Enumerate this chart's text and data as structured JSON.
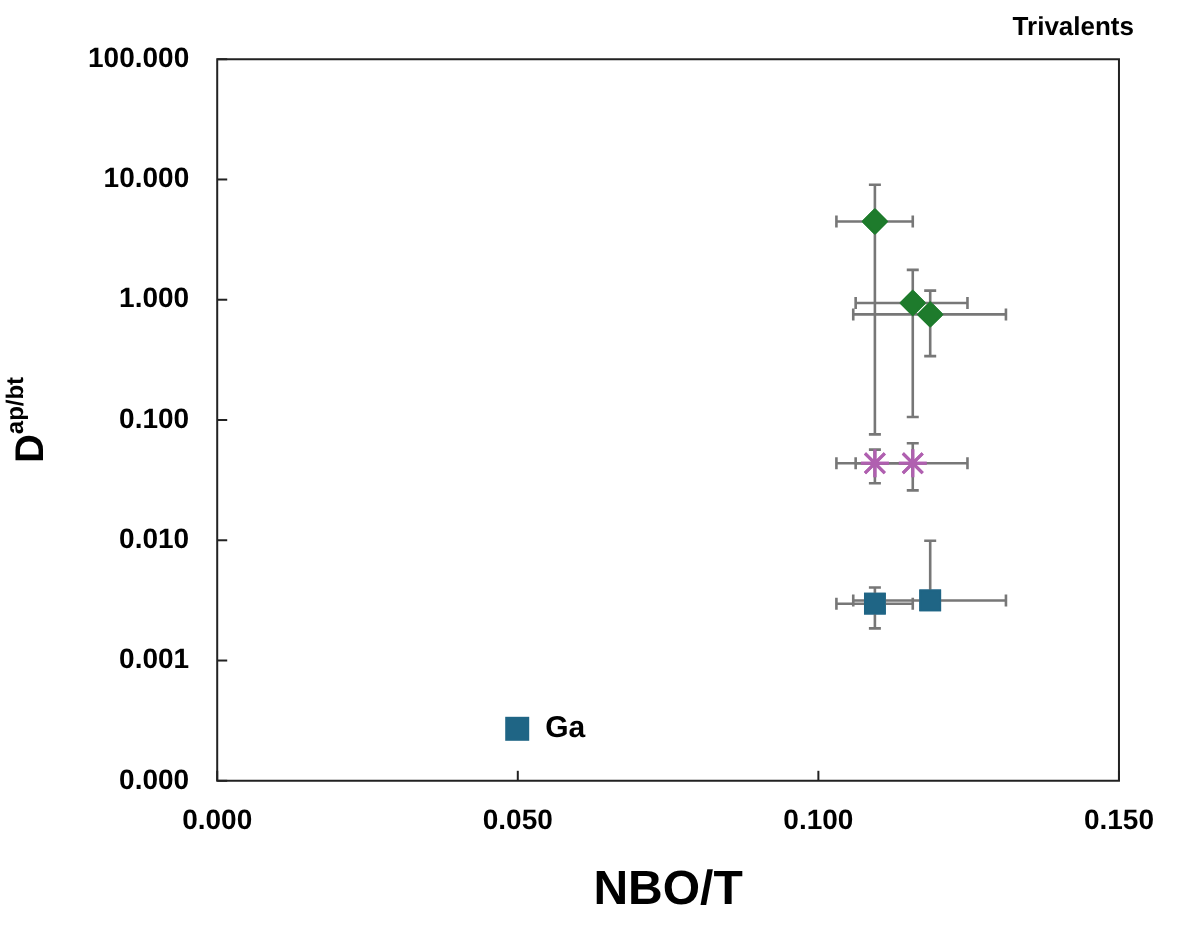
{
  "chart_data": {
    "type": "scatter",
    "title": "Trivalents",
    "xlabel": "NBO/T",
    "ylabel": "D$^{ap/bt}$",
    "log": "y",
    "xlim": [
      0,
      0.15
    ],
    "xticks": [
      {
        "value": 0,
        "label": "0.000"
      },
      {
        "value": 0.05,
        "label": "0.050"
      },
      {
        "value": 0.1,
        "label": "0.100"
      },
      {
        "value": 0.15,
        "label": "0.150"
      }
    ],
    "ylim": [
      0.0001,
      100
    ],
    "yticks": [
      {
        "value": 0.0001,
        "label": "0.000"
      },
      {
        "value": 0.001,
        "label": "0.001"
      },
      {
        "value": 0.01,
        "label": "0.010"
      },
      {
        "value": 0.1,
        "label": "0.100"
      },
      {
        "value": 1,
        "label": "1.000"
      },
      {
        "value": 10,
        "label": "10.000"
      },
      {
        "value": 100,
        "label": "100.000"
      }
    ],
    "grid": false,
    "legend": "bottom left",
    "series": [
      {
        "color": "#1e7b2c",
        "marker": "diamond",
        "x": [
          0.1094,
          0.1157,
          0.1186
        ],
        "values": [
          4.47,
          0.94,
          0.755
        ],
        "errors": [
          [
            0.076,
            9.05
          ],
          [
            0.106,
            1.77
          ],
          [
            0.34,
            1.19
          ]
        ],
        "xerrors": [
          [
            0.103,
            0.1157
          ],
          [
            0.1062,
            0.1248
          ],
          [
            0.1058,
            0.1312
          ]
        ]
      },
      {
        "color": "#b060b0",
        "marker": "cross",
        "x": [
          0.1094,
          0.1157
        ],
        "values": [
          0.0437,
          0.0437
        ],
        "errors": [
          [
            0.0298,
            0.0567
          ],
          [
            0.026,
            0.064
          ]
        ],
        "xerrors": [
          [
            0.103,
            0.1157
          ],
          [
            0.1062,
            0.1248
          ]
        ]
      },
      {
        "name": "Ga",
        "color": "#1f6585",
        "marker": "square",
        "x": [
          0.1094,
          0.1186
        ],
        "values": [
          0.00297,
          0.00316
        ],
        "errors": [
          [
            0.00185,
            0.00405
          ],
          [
            0.00316,
            0.0099
          ]
        ],
        "xerrors": [
          [
            0.103,
            0.1157
          ],
          [
            0.1058,
            0.1312
          ]
        ]
      }
    ]
  }
}
